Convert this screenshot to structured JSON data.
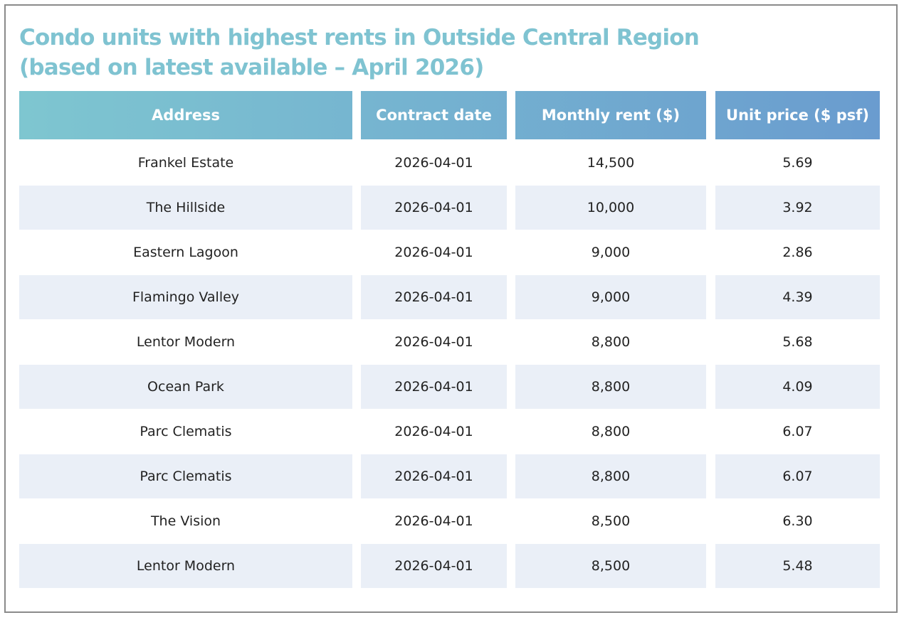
{
  "title": [
    "Condo units with highest rents in Outside Central Region",
    "(based on latest available – April 2026)"
  ],
  "table": {
    "header": [
      "Address",
      "Contract date",
      "Monthly rent ($)",
      "Unit price ($ psf)"
    ],
    "rows": [
      [
        "Frankel Estate",
        "2026-04-01",
        "14,500",
        "5.69"
      ],
      [
        "The Hillside",
        "2026-04-01",
        "10,000",
        "3.92"
      ],
      [
        "Eastern Lagoon",
        "2026-04-01",
        "9,000",
        "2.86"
      ],
      [
        "Flamingo Valley",
        "2026-04-01",
        "9,000",
        "4.39"
      ],
      [
        "Lentor Modern",
        "2026-04-01",
        "8,800",
        "5.68"
      ],
      [
        "Ocean Park",
        "2026-04-01",
        "8,800",
        "4.09"
      ],
      [
        "Parc Clematis",
        "2026-04-01",
        "8,800",
        "6.07"
      ],
      [
        "Parc Clematis",
        "2026-04-01",
        "8,800",
        "6.07"
      ],
      [
        "The Vision",
        "2026-04-01",
        "8,500",
        "6.30"
      ],
      [
        "Lentor Modern",
        "2026-04-01",
        "8,500",
        "5.48"
      ]
    ]
  }
}
